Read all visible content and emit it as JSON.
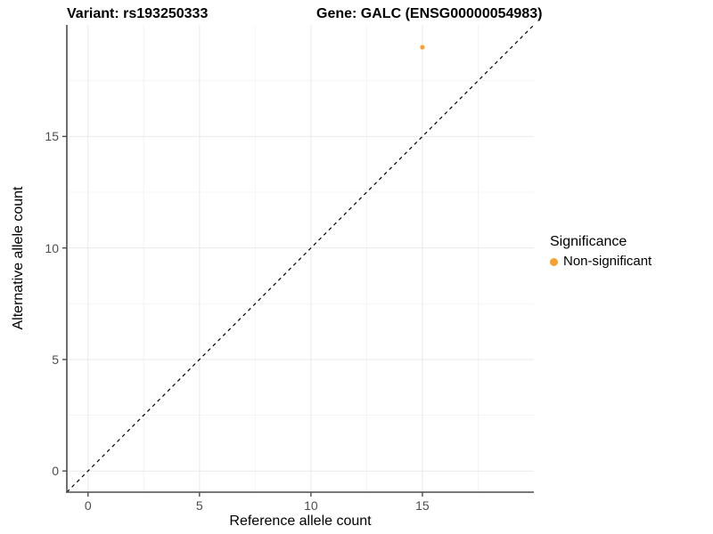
{
  "titles": {
    "variant": "Variant: rs193250333",
    "gene": "Gene: GALC (ENSG00000054983)"
  },
  "axes": {
    "x_label": "Reference allele count",
    "y_label": "Alternative allele count"
  },
  "legend": {
    "title": "Significance",
    "items": [
      {
        "label": "Non-significant",
        "color": "#F8A030"
      }
    ]
  },
  "colors": {
    "point_orange": "#F8A030",
    "axis_line": "#4d4d4d",
    "tick_text": "#4d4d4d",
    "major_grid": "#e9e9e9",
    "minor_grid": "#f4f4f4",
    "identity_line": "#000000",
    "background": "#ffffff"
  },
  "chart_data": {
    "type": "scatter",
    "title_left": "Variant: rs193250333",
    "title_right": "Gene: GALC (ENSG00000054983)",
    "xlabel": "Reference allele count",
    "ylabel": "Alternative allele count",
    "xlim": [
      -0.95,
      20.0
    ],
    "ylim": [
      -0.95,
      20.0
    ],
    "x_ticks": [
      0,
      5,
      10,
      15
    ],
    "y_ticks": [
      0,
      5,
      10,
      15
    ],
    "x_minor_ticks": [
      2.5,
      7.5,
      12.5,
      17.5
    ],
    "y_minor_ticks": [
      2.5,
      7.5,
      12.5,
      17.5
    ],
    "grid": true,
    "legend_position": "right",
    "legend_title": "Significance",
    "identity_line": {
      "style": "dashed",
      "from": -0.95,
      "to": 20.0
    },
    "series": [
      {
        "name": "Non-significant",
        "color": "#F8A030",
        "points": [
          {
            "x": 15,
            "y": 19
          }
        ]
      }
    ]
  }
}
